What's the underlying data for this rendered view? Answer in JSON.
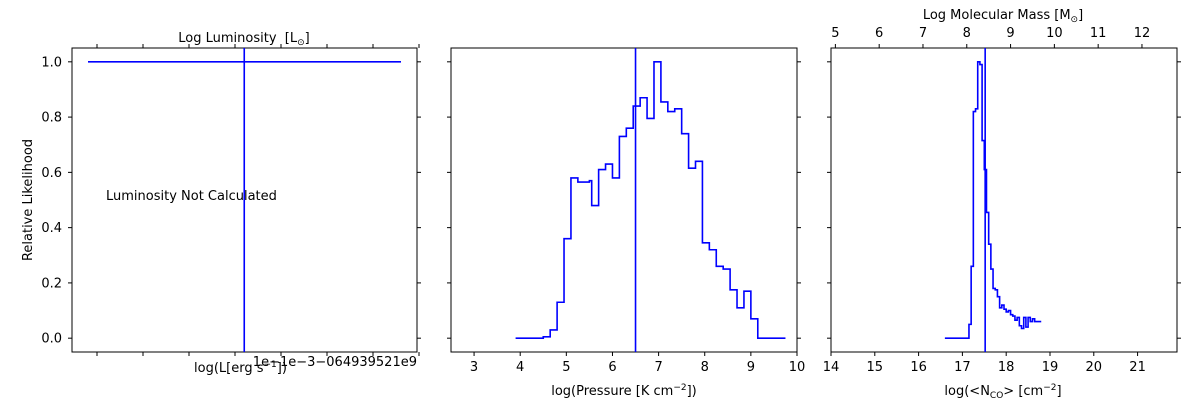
{
  "chart_data": [
    {
      "type": "line",
      "id": "luminosity",
      "ylabel": "Relative Likelihood",
      "xlabel": "log(L[erg s^-1])",
      "top_xlabel": "Log Luminosity  [L⊙]",
      "annotation": "Luminosity Not Calculated",
      "offset_text": "1e−1e−3−064939521e9",
      "ylim": [
        -0.05,
        1.05
      ],
      "yticks": [
        0.0,
        0.2,
        0.4,
        0.6,
        0.8,
        1.0
      ],
      "yticklabels": [
        "0.0",
        "0.2",
        "0.4",
        "0.6",
        "0.8",
        "1.0"
      ],
      "series": [
        {
          "x_rel": [
            0.0,
            1.0
          ],
          "y": [
            1.0,
            1.0
          ]
        }
      ],
      "marker_rel": 0.45,
      "color": "#0000ff"
    },
    {
      "type": "line",
      "id": "pressure",
      "xlabel": "log(Pressure [K cm^-2])",
      "xlim": [
        2.5,
        10.0
      ],
      "ylim": [
        -0.05,
        1.05
      ],
      "xticks": [
        3,
        4,
        5,
        6,
        7,
        8,
        9,
        10
      ],
      "steps": [
        [
          3.9,
          0.0
        ],
        [
          4.5,
          0.005
        ],
        [
          4.65,
          0.03
        ],
        [
          4.8,
          0.13
        ],
        [
          4.95,
          0.36
        ],
        [
          5.1,
          0.58
        ],
        [
          5.25,
          0.565
        ],
        [
          5.5,
          0.57
        ],
        [
          5.55,
          0.48
        ],
        [
          5.7,
          0.61
        ],
        [
          5.85,
          0.63
        ],
        [
          6.0,
          0.58
        ],
        [
          6.15,
          0.73
        ],
        [
          6.3,
          0.76
        ],
        [
          6.45,
          0.84
        ],
        [
          6.6,
          0.87
        ],
        [
          6.75,
          0.795
        ],
        [
          6.9,
          1.0
        ],
        [
          7.05,
          0.855
        ],
        [
          7.2,
          0.82
        ],
        [
          7.35,
          0.83
        ],
        [
          7.5,
          0.74
        ],
        [
          7.65,
          0.615
        ],
        [
          7.8,
          0.64
        ],
        [
          7.95,
          0.345
        ],
        [
          8.1,
          0.32
        ],
        [
          8.25,
          0.26
        ],
        [
          8.4,
          0.25
        ],
        [
          8.55,
          0.175
        ],
        [
          8.7,
          0.11
        ],
        [
          8.85,
          0.17
        ],
        [
          9.0,
          0.07
        ],
        [
          9.15,
          0.0
        ],
        [
          9.75,
          0.0
        ]
      ],
      "marker": 6.5,
      "color": "#0000ff"
    },
    {
      "type": "line",
      "id": "column-density",
      "xlabel": "log(<N_CO> [cm^-2])",
      "top_xlabel": "Log Molecular Mass [M⊙]",
      "xlim": [
        14.0,
        21.9
      ],
      "ylim": [
        -0.05,
        1.05
      ],
      "xticks": [
        14,
        15,
        16,
        17,
        18,
        19,
        20,
        21
      ],
      "top_xticks": [
        5,
        6,
        7,
        8,
        9,
        10,
        11,
        12
      ],
      "top_xlim": [
        4.9,
        12.8
      ],
      "steps": [
        [
          16.6,
          0.0
        ],
        [
          17.1,
          0.0
        ],
        [
          17.15,
          0.05
        ],
        [
          17.2,
          0.26
        ],
        [
          17.25,
          0.82
        ],
        [
          17.3,
          0.83
        ],
        [
          17.35,
          1.0
        ],
        [
          17.4,
          0.99
        ],
        [
          17.45,
          0.715
        ],
        [
          17.5,
          0.61
        ],
        [
          17.55,
          0.455
        ],
        [
          17.6,
          0.34
        ],
        [
          17.65,
          0.25
        ],
        [
          17.7,
          0.18
        ],
        [
          17.75,
          0.175
        ],
        [
          17.8,
          0.15
        ],
        [
          17.85,
          0.11
        ],
        [
          17.9,
          0.12
        ],
        [
          17.95,
          0.105
        ],
        [
          18.0,
          0.095
        ],
        [
          18.05,
          0.1
        ],
        [
          18.1,
          0.085
        ],
        [
          18.15,
          0.08
        ],
        [
          18.2,
          0.065
        ],
        [
          18.25,
          0.075
        ],
        [
          18.3,
          0.045
        ],
        [
          18.35,
          0.035
        ],
        [
          18.4,
          0.075
        ],
        [
          18.45,
          0.04
        ],
        [
          18.5,
          0.075
        ],
        [
          18.55,
          0.06
        ],
        [
          18.6,
          0.07
        ],
        [
          18.65,
          0.06
        ],
        [
          18.8,
          0.06
        ]
      ],
      "marker": 17.52,
      "color": "#0000ff"
    }
  ]
}
